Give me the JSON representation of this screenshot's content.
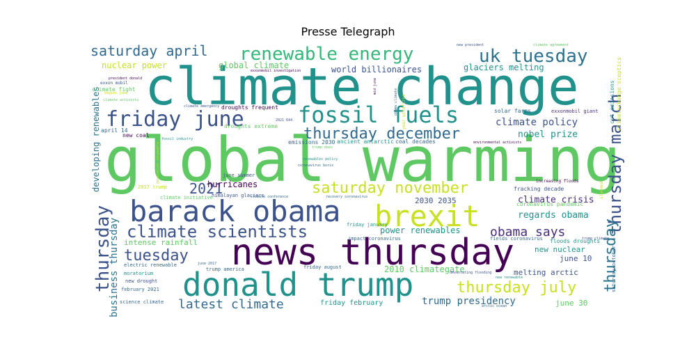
{
  "chart_data": {
    "type": "wordcloud",
    "title": "Presse Telegraph",
    "words": [
      {
        "text": "global warming",
        "weight": 100,
        "color": "#5ec962"
      },
      {
        "text": "climate change",
        "weight": 92,
        "color": "#21918c"
      },
      {
        "text": "news thursday",
        "weight": 62,
        "color": "#440154"
      },
      {
        "text": "donald trump",
        "weight": 58,
        "color": "#21918c"
      },
      {
        "text": "barack obama",
        "weight": 55,
        "color": "#3b528b"
      },
      {
        "text": "brexit",
        "weight": 50,
        "color": "#c8e020"
      },
      {
        "text": "fossil fuels",
        "weight": 42,
        "color": "#21918c"
      },
      {
        "text": "friday june",
        "weight": 40,
        "color": "#3b528b"
      },
      {
        "text": "climate scientists",
        "weight": 33,
        "color": "#3b528b"
      },
      {
        "text": "renewable energy",
        "weight": 32,
        "color": "#35b779"
      },
      {
        "text": "uk tuesday",
        "weight": 32,
        "color": "#2c728e"
      },
      {
        "text": "thursday december",
        "weight": 30,
        "color": "#31688e"
      },
      {
        "text": "saturday november",
        "weight": 28,
        "color": "#c8e020"
      },
      {
        "text": "thursday march",
        "weight": 28,
        "color": "#3b528b"
      },
      {
        "text": "thursday july",
        "weight": 27,
        "color": "#c8e020"
      },
      {
        "text": "thursday",
        "weight": 27,
        "color": "#3b528b"
      },
      {
        "text": "thursday",
        "weight": 27,
        "color": "#2c728e"
      },
      {
        "text": "tuesday",
        "weight": 26,
        "color": "#3b528b"
      },
      {
        "text": "saturday april",
        "weight": 25,
        "color": "#31688e"
      },
      {
        "text": "2021",
        "weight": 23,
        "color": "#3b528b"
      },
      {
        "text": "latest climate",
        "weight": 20,
        "color": "#31688e"
      },
      {
        "text": "obama says",
        "weight": 20,
        "color": "#472d7b"
      },
      {
        "text": "climate policy",
        "weight": 15,
        "color": "#3b528b"
      },
      {
        "text": "trump presidency",
        "weight": 15,
        "color": "#31688e"
      },
      {
        "text": "business thursday",
        "weight": 15,
        "color": "#2c728e"
      },
      {
        "text": "developing renewables",
        "weight": 14,
        "color": "#2c728e"
      },
      {
        "text": "nobel prize",
        "weight": 13,
        "color": "#21918c"
      },
      {
        "text": "climate crisis",
        "weight": 13,
        "color": "#472d7b"
      },
      {
        "text": "regards obama",
        "weight": 13,
        "color": "#21918c"
      },
      {
        "text": "world billionaires",
        "weight": 12,
        "color": "#3b528b"
      },
      {
        "text": "glaciers melting",
        "weight": 12,
        "color": "#21918c"
      },
      {
        "text": "nuclear power",
        "weight": 12,
        "color": "#c8e020"
      },
      {
        "text": "global climate",
        "weight": 12,
        "color": "#5ec962"
      },
      {
        "text": "hurricanes",
        "weight": 12,
        "color": "#440154"
      },
      {
        "text": "power renewables",
        "weight": 12,
        "color": "#21918c"
      },
      {
        "text": "2010 climategate",
        "weight": 12,
        "color": "#5ec962"
      },
      {
        "text": "intense rainfall",
        "weight": 11,
        "color": "#5ec962"
      },
      {
        "text": "2030 2035",
        "weight": 11,
        "color": "#3b528b"
      },
      {
        "text": "melting arctic",
        "weight": 11,
        "color": "#3b528b"
      },
      {
        "text": "june 10",
        "weight": 11,
        "color": "#3b528b"
      },
      {
        "text": "june 30",
        "weight": 11,
        "color": "#5ec962"
      },
      {
        "text": "new nuclear",
        "weight": 10,
        "color": "#21918c"
      },
      {
        "text": "friday february",
        "weight": 10,
        "color": "#21918c"
      },
      {
        "text": "cut emissions",
        "weight": 9,
        "color": "#21918c"
      },
      {
        "text": "climatechange sceptics",
        "weight": 8,
        "color": "#c8e020"
      },
      {
        "text": "saturday october",
        "weight": 7,
        "color": "#31688e"
      },
      {
        "text": "solar farms",
        "weight": 8,
        "color": "#31688e"
      },
      {
        "text": "exxonmobil giant",
        "weight": 7,
        "color": "#472d7b"
      },
      {
        "text": "new coal",
        "weight": 8,
        "color": "#440154"
      },
      {
        "text": "april 14",
        "weight": 8,
        "color": "#31688e"
      },
      {
        "text": "droughts frequent",
        "weight": 8,
        "color": "#440154"
      },
      {
        "text": "droughts extreme",
        "weight": 8,
        "color": "#5ec962"
      },
      {
        "text": "ancient antarctic",
        "weight": 8,
        "color": "#21918c"
      },
      {
        "text": "coal decades",
        "weight": 8,
        "color": "#31688e"
      },
      {
        "text": "emissions 2030",
        "weight": 8,
        "color": "#31688e"
      },
      {
        "text": "climate fight",
        "weight": 8,
        "color": "#5ec962"
      },
      {
        "text": "exxon mobil",
        "weight": 6,
        "color": "#3b528b"
      },
      {
        "text": "fracking decade",
        "weight": 8,
        "color": "#3b528b"
      },
      {
        "text": "coronavirus pandemic",
        "weight": 8,
        "color": "#5ec962"
      },
      {
        "text": "floods droughts",
        "weight": 8,
        "color": "#21918c"
      },
      {
        "text": "climate initiative",
        "weight": 7,
        "color": "#5ec962"
      },
      {
        "text": "himalayan glaciers",
        "weight": 7,
        "color": "#3b528b"
      },
      {
        "text": "2017 trump",
        "weight": 7,
        "color": "#c8e020"
      },
      {
        "text": "friday january",
        "weight": 7,
        "color": "#21918c"
      },
      {
        "text": "impact coronavirus",
        "weight": 7,
        "color": "#31688e"
      },
      {
        "text": "fields coronavirus",
        "weight": 7,
        "color": "#31688e"
      },
      {
        "text": "electric renewable",
        "weight": 7,
        "color": "#31688e"
      },
      {
        "text": "trump america",
        "weight": 7,
        "color": "#31688e"
      },
      {
        "text": "friday august",
        "weight": 7,
        "color": "#31688e"
      },
      {
        "text": "moratorium",
        "weight": 7,
        "color": "#21918c"
      },
      {
        "text": "new drought",
        "weight": 7,
        "color": "#3b528b"
      },
      {
        "text": "february 2021",
        "weight": 7,
        "color": "#31688e"
      },
      {
        "text": "science climate",
        "weight": 7,
        "color": "#31688e"
      },
      {
        "text": "june summer",
        "weight": 7,
        "color": "#3b528b"
      },
      {
        "text": "year wildfires",
        "weight": 6,
        "color": "#c8e020"
      },
      {
        "text": "increasing floods",
        "weight": 6,
        "color": "#440154"
      },
      {
        "text": "slammed",
        "weight": 6,
        "color": "#c8e020"
      },
      {
        "text": "2025",
        "weight": 6,
        "color": "#5ec962"
      },
      {
        "text": "environmental activists",
        "weight": 5,
        "color": "#440154"
      },
      {
        "text": "renewables policy",
        "weight": 5,
        "color": "#21918c"
      },
      {
        "text": "coronavirus boris",
        "weight": 5,
        "color": "#31688e"
      },
      {
        "text": "climate conference",
        "weight": 5,
        "color": "#31688e"
      },
      {
        "text": "recovery coronavirus",
        "weight": 5,
        "color": "#31688e"
      },
      {
        "text": "new renewable",
        "weight": 5,
        "color": "#21918c"
      },
      {
        "text": "trump climate",
        "weight": 5,
        "color": "#3b528b"
      },
      {
        "text": "devastating flooding",
        "weight": 5,
        "color": "#3b528b"
      },
      {
        "text": "arctic ocean",
        "weight": 5,
        "color": "#31688e"
      },
      {
        "text": "june 2017",
        "weight": 5,
        "color": "#31688e"
      },
      {
        "text": "generation renewable",
        "weight": 5,
        "color": "#c8e020"
      },
      {
        "text": "climate emergency",
        "weight": 5,
        "color": "#3b528b"
      },
      {
        "text": "2021 644",
        "weight": 5,
        "color": "#3b528b"
      },
      {
        "text": "fossil industry",
        "weight": 5,
        "color": "#21918c"
      },
      {
        "text": "trump does",
        "weight": 5,
        "color": "#5ec962"
      },
      {
        "text": "climate activists",
        "weight": 5,
        "color": "#5ec962"
      },
      {
        "text": "begins june",
        "weight": 5,
        "color": "#c8e020"
      },
      {
        "text": "president donald",
        "weight": 5,
        "color": "#440154"
      },
      {
        "text": "exxonmobil investigation",
        "weight": 5,
        "color": "#440154"
      },
      {
        "text": "mid june",
        "weight": 5,
        "color": "#440154"
      },
      {
        "text": "obama climate",
        "weight": 5,
        "color": "#31688e"
      },
      {
        "text": "new president",
        "weight": 5,
        "color": "#3b528b"
      },
      {
        "text": "climate agreement",
        "weight": 5,
        "color": "#5ec962"
      }
    ]
  }
}
